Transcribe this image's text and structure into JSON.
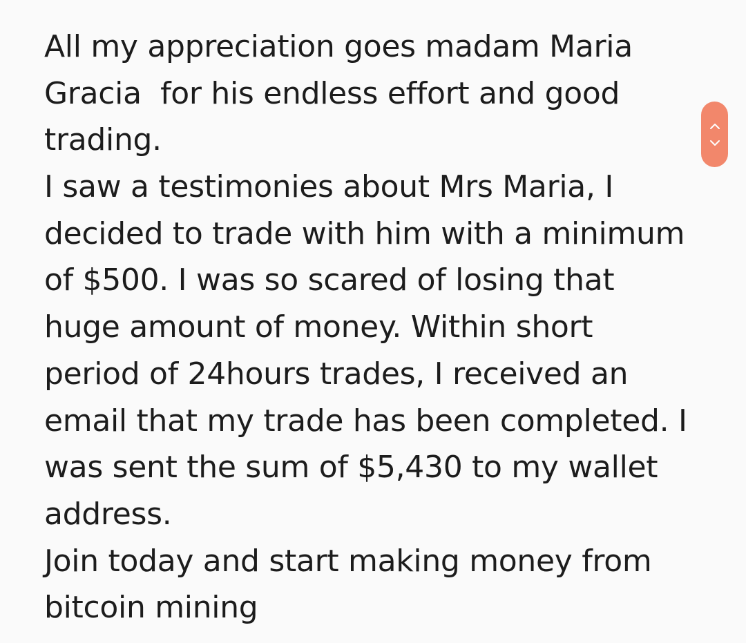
{
  "message": {
    "lines": [
      "All my appreciation goes madam Maria",
      "Gracia  for his endless effort and good",
      "trading.",
      "I saw a testimonies about Mrs Maria, I",
      "decided to trade with him with a minimum",
      "of $500. I was so scared of losing that",
      "huge amount of money. Within short",
      "period of 24hours trades, I received an",
      "email that my trade has been completed. I",
      "was sent the sum of $5,430 to my wallet",
      "address.",
      "Join today and start making money from",
      "bitcoin mining"
    ]
  },
  "scroll_control": {
    "color": "#f2876b",
    "up_icon": "chevron-up-icon",
    "down_icon": "chevron-down-icon"
  }
}
